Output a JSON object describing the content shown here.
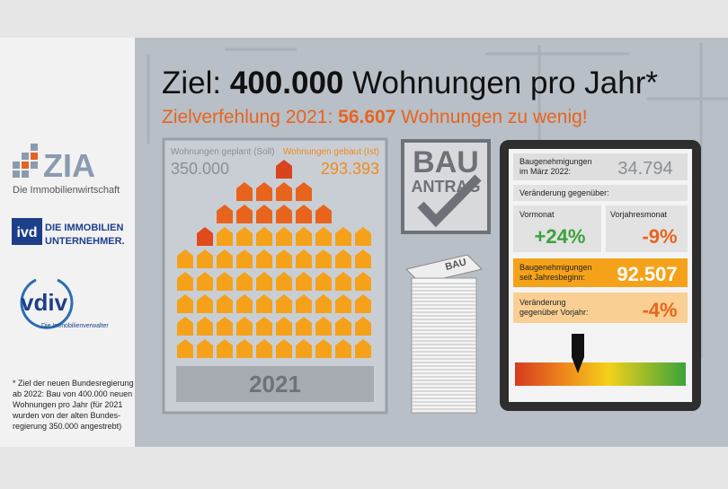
{
  "header": {
    "title": {
      "prefix": "Ziel:",
      "value": "400.000",
      "suffix": "Wohnungen pro Jahr*"
    },
    "subtitle": {
      "prefix": "Zielverfehlung 2021:",
      "value": "56.607",
      "suffix": "Wohnungen zu wenig!"
    }
  },
  "sidebar": {
    "logos": [
      {
        "name": "ZIA",
        "caption": "Die Immobilienwirtschaft"
      },
      {
        "name": "ivd",
        "caption": [
          "DIE IMMOBILIEN",
          "UNTERNEHMER."
        ]
      },
      {
        "name": "vdiv",
        "caption": "Die Immobilienverwalter"
      }
    ],
    "footnote": [
      "* Ziel der neuen Bundesregierung",
      "ab 2022: Bau von 400.000 neuen",
      "Wohnungen pro Jahr (für 2021",
      "wurden von der alten Bundes-",
      "regierung 350.000 angestrebt)"
    ]
  },
  "housing": {
    "planned_label": "Wohnungen geplant (Soll)",
    "planned_value": "350.000",
    "built_label": "Wohnungen gebaut (Ist)",
    "built_value": "293.393",
    "year": "2021"
  },
  "stamp": {
    "line1": "BAU",
    "line2": "ANTRAG"
  },
  "tablet": {
    "permits_month_label": [
      "Baugenehmigungen",
      "im März 2022:"
    ],
    "permits_month_value": "34.794",
    "change_label": "Veränderung gegenüber:",
    "prev_month_label": "Vormonat",
    "prev_month_value": "+24%",
    "prev_year_month_label": "Vorjahresmonat",
    "prev_year_month_value": "-9%",
    "ytd_label": [
      "Baugenehmigungen",
      "seit Jahresbeginn:"
    ],
    "ytd_value": "92.507",
    "ytd_change_label": [
      "Veränderung",
      "gegenüber Vorjahr:"
    ],
    "ytd_change_value": "-4%"
  }
}
